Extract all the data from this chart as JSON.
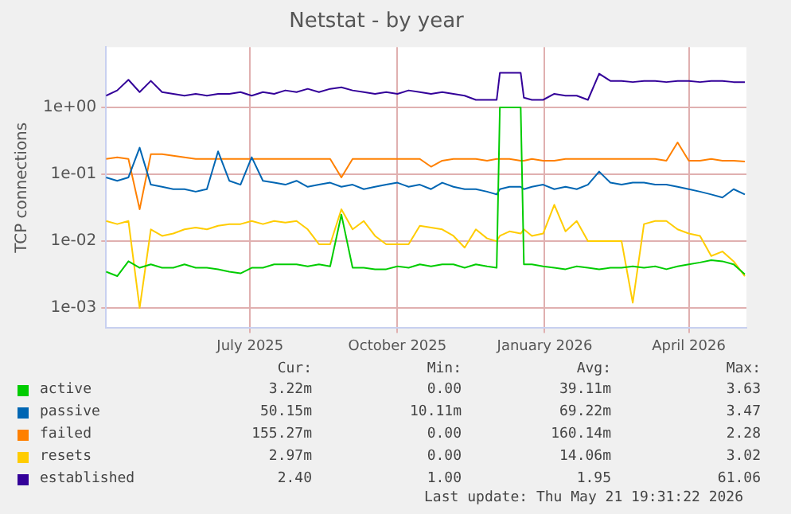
{
  "chart_data": {
    "type": "line",
    "title": "Netstat - by year",
    "ylabel": "TCP connections",
    "log": "y",
    "grid": true,
    "legend": "bottom",
    "marker": "none",
    "line_style": "solid",
    "x": [
      "2025-04-16",
      "2025-04-23",
      "2025-04-30",
      "2025-05-07",
      "2025-05-14",
      "2025-05-21",
      "2025-05-28",
      "2025-06-04",
      "2025-06-11",
      "2025-06-18",
      "2025-06-25",
      "2025-07-02",
      "2025-07-09",
      "2025-07-16",
      "2025-07-23",
      "2025-07-30",
      "2025-08-06",
      "2025-08-13",
      "2025-08-20",
      "2025-08-27",
      "2025-09-03",
      "2025-09-10",
      "2025-09-17",
      "2025-09-24",
      "2025-10-01",
      "2025-10-08",
      "2025-10-15",
      "2025-10-22",
      "2025-10-29",
      "2025-11-05",
      "2025-11-12",
      "2025-11-19",
      "2025-11-26",
      "2025-12-03",
      "2025-12-10",
      "2025-12-16",
      "2025-12-18",
      "2025-12-24",
      "2025-12-31",
      "2026-01-02",
      "2026-01-07",
      "2026-01-14",
      "2026-01-21",
      "2026-01-28",
      "2026-02-04",
      "2026-02-11",
      "2026-02-18",
      "2026-02-25",
      "2026-03-04",
      "2026-03-11",
      "2026-03-18",
      "2026-03-25",
      "2026-04-01",
      "2026-04-08",
      "2026-04-15",
      "2026-04-22",
      "2026-04-29",
      "2026-05-06",
      "2026-05-13",
      "2026-05-20"
    ],
    "xlim": [
      "2025-04-16",
      "2026-05-21"
    ],
    "xticks": [
      {
        "value": "2025-07-15",
        "label": "July 2025"
      },
      {
        "value": "2025-10-15",
        "label": "October 2025"
      },
      {
        "value": "2026-01-15",
        "label": "January 2026"
      },
      {
        "value": "2026-04-15",
        "label": "April 2026"
      }
    ],
    "ylim": [
      0.0005,
      8
    ],
    "yticks": [
      {
        "value": 0.001,
        "label": "1e-03"
      },
      {
        "value": 0.01,
        "label": "1e-02"
      },
      {
        "value": 0.1,
        "label": "1e-01"
      },
      {
        "value": 1,
        "label": "1e+00"
      }
    ],
    "series": [
      {
        "name": "active",
        "color": "#00cc00",
        "values": [
          0.0035,
          0.003,
          0.005,
          0.004,
          0.0045,
          0.004,
          0.004,
          0.0045,
          0.004,
          0.004,
          0.0038,
          0.0035,
          0.0033,
          0.004,
          0.004,
          0.0045,
          0.0045,
          0.0045,
          0.0042,
          0.0045,
          0.0042,
          0.025,
          0.004,
          0.004,
          0.0038,
          0.0038,
          0.0042,
          0.004,
          0.0045,
          0.0042,
          0.0045,
          0.0045,
          0.004,
          0.0045,
          0.0042,
          0.004,
          1.0,
          1.0,
          1.0,
          0.0045,
          0.0045,
          0.0042,
          0.004,
          0.0038,
          0.0042,
          0.004,
          0.0038,
          0.004,
          0.004,
          0.0042,
          0.004,
          0.0042,
          0.0038,
          0.0042,
          0.0045,
          0.0048,
          0.0052,
          0.005,
          0.0045,
          0.0032
        ]
      },
      {
        "name": "passive",
        "color": "#0066b3",
        "values": [
          0.09,
          0.08,
          0.09,
          0.25,
          0.07,
          0.065,
          0.06,
          0.06,
          0.055,
          0.06,
          0.22,
          0.08,
          0.07,
          0.18,
          0.08,
          0.075,
          0.07,
          0.08,
          0.065,
          0.07,
          0.075,
          0.065,
          0.07,
          0.06,
          0.065,
          0.07,
          0.075,
          0.065,
          0.07,
          0.06,
          0.075,
          0.065,
          0.06,
          0.06,
          0.055,
          0.05,
          0.06,
          0.065,
          0.065,
          0.06,
          0.065,
          0.07,
          0.06,
          0.065,
          0.06,
          0.07,
          0.11,
          0.075,
          0.07,
          0.075,
          0.075,
          0.07,
          0.07,
          0.065,
          0.06,
          0.055,
          0.05,
          0.045,
          0.06,
          0.05
        ]
      },
      {
        "name": "failed",
        "color": "#ff8000",
        "values": [
          0.17,
          0.18,
          0.17,
          0.03,
          0.2,
          0.2,
          0.19,
          0.18,
          0.17,
          0.17,
          0.17,
          0.17,
          0.17,
          0.17,
          0.17,
          0.17,
          0.17,
          0.17,
          0.17,
          0.17,
          0.17,
          0.09,
          0.17,
          0.17,
          0.17,
          0.17,
          0.17,
          0.17,
          0.17,
          0.13,
          0.16,
          0.17,
          0.17,
          0.17,
          0.16,
          0.17,
          0.17,
          0.17,
          0.16,
          0.16,
          0.17,
          0.16,
          0.16,
          0.17,
          0.17,
          0.17,
          0.17,
          0.17,
          0.17,
          0.17,
          0.17,
          0.17,
          0.16,
          0.3,
          0.16,
          0.16,
          0.17,
          0.16,
          0.16,
          0.155
        ]
      },
      {
        "name": "resets",
        "color": "#ffcc00",
        "values": [
          0.02,
          0.018,
          0.02,
          0.001,
          0.015,
          0.012,
          0.013,
          0.015,
          0.016,
          0.015,
          0.017,
          0.018,
          0.018,
          0.02,
          0.018,
          0.02,
          0.019,
          0.02,
          0.015,
          0.009,
          0.009,
          0.03,
          0.015,
          0.02,
          0.012,
          0.009,
          0.009,
          0.009,
          0.017,
          0.016,
          0.015,
          0.012,
          0.008,
          0.015,
          0.011,
          0.01,
          0.012,
          0.014,
          0.013,
          0.015,
          0.012,
          0.013,
          0.035,
          0.014,
          0.02,
          0.01,
          0.01,
          0.01,
          0.01,
          0.0012,
          0.018,
          0.02,
          0.02,
          0.015,
          0.013,
          0.012,
          0.006,
          0.007,
          0.005,
          0.003
        ]
      },
      {
        "name": "established",
        "color": "#330099",
        "values": [
          1.5,
          1.8,
          2.6,
          1.7,
          2.5,
          1.7,
          1.6,
          1.5,
          1.6,
          1.5,
          1.6,
          1.6,
          1.7,
          1.5,
          1.7,
          1.6,
          1.8,
          1.7,
          1.9,
          1.7,
          1.9,
          2.0,
          1.8,
          1.7,
          1.6,
          1.7,
          1.6,
          1.8,
          1.7,
          1.6,
          1.7,
          1.6,
          1.5,
          1.3,
          1.3,
          1.3,
          3.3,
          3.3,
          3.3,
          1.4,
          1.3,
          1.3,
          1.6,
          1.5,
          1.5,
          1.3,
          3.2,
          2.5,
          2.5,
          2.4,
          2.5,
          2.5,
          2.4,
          2.5,
          2.5,
          2.4,
          2.5,
          2.5,
          2.4,
          2.4
        ]
      }
    ],
    "annotations": [
      "Cur:",
      "Min:",
      "Avg:",
      "Max:",
      "3.22m",
      "0.00",
      "39.11m",
      "3.63",
      "50.15m",
      "10.11m",
      "69.22m",
      "3.47",
      "155.27m",
      "0.00",
      "160.14m",
      "2.28",
      "2.97m",
      "0.00",
      "14.06m",
      "3.02",
      "2.40",
      "1.00",
      "1.95",
      "61.06",
      "Last update: Thu May 21 19:31:22 2026"
    ]
  }
}
